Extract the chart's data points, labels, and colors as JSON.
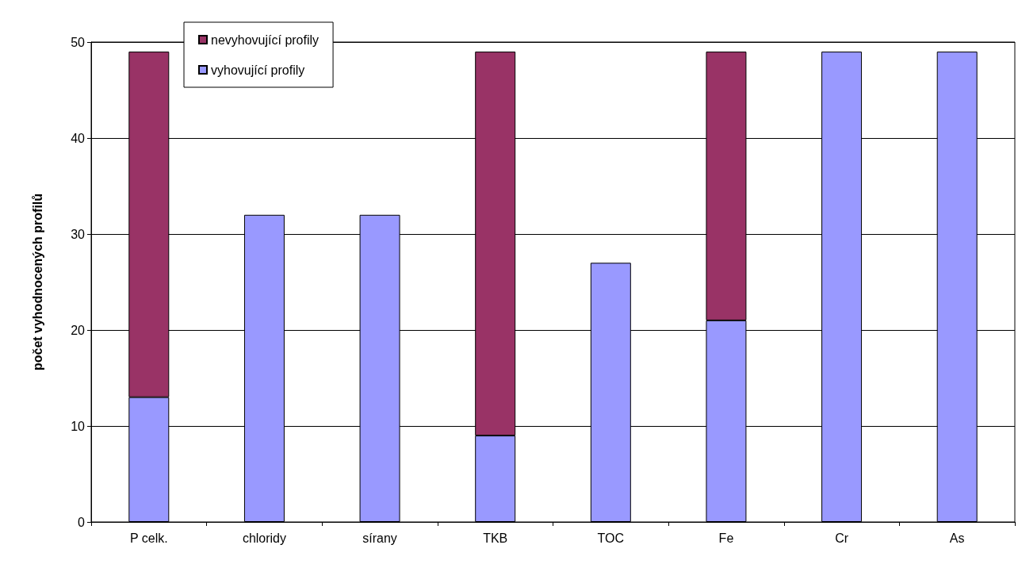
{
  "chart_data": {
    "type": "bar",
    "stacked": true,
    "ylabel": "počet vyhodnocených profilů",
    "categories": [
      "P celk.",
      "chloridy",
      "sírany",
      "TKB",
      "TOC",
      "Fe",
      "Cr",
      "As"
    ],
    "series": [
      {
        "name": "vyhovující profily",
        "color": "#9999ff",
        "values": [
          13,
          32,
          32,
          9,
          27,
          21,
          49,
          49
        ]
      },
      {
        "name": "nevyhovující profily",
        "color": "#993366",
        "values": [
          36,
          null,
          null,
          40,
          null,
          28,
          null,
          null
        ]
      }
    ],
    "ylim": [
      0,
      50
    ],
    "yticks": [
      0,
      10,
      20,
      30,
      40,
      50
    ],
    "grid": "y",
    "legend": "top left"
  }
}
